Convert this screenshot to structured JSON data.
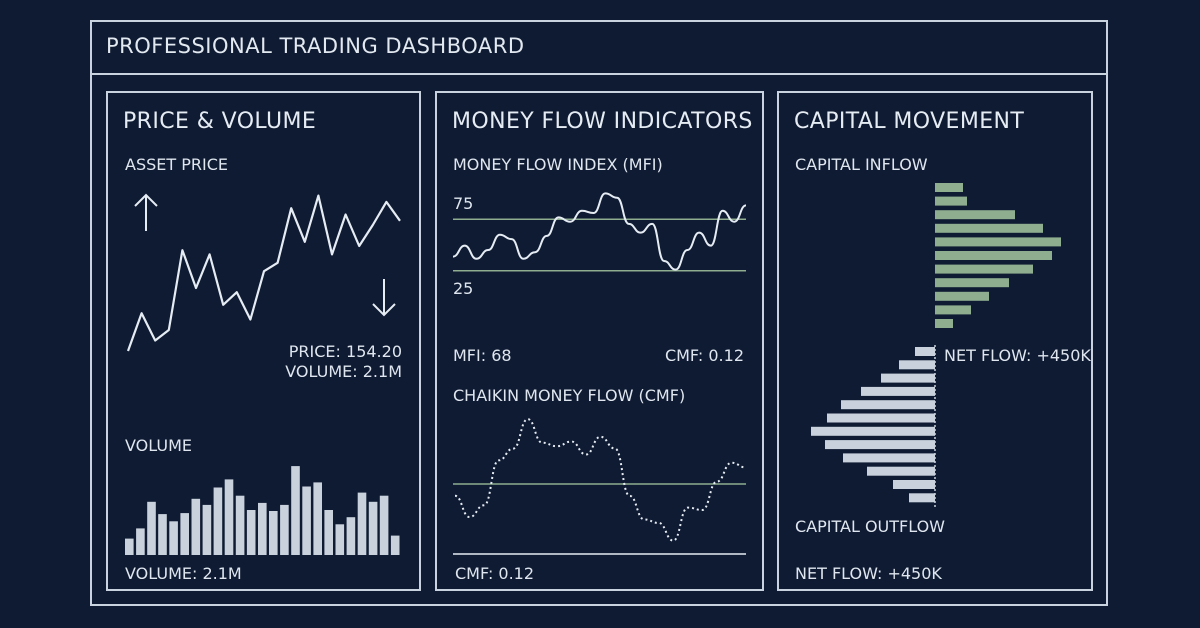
{
  "header": {
    "title": "PROFESSIONAL TRADING DASHBOARD"
  },
  "colors": {
    "background": "#0f1b33",
    "line": "#e6ecf3",
    "inflow": "#8fae8f",
    "outflow": "#c9d2dc",
    "threshold": "#8fae8f"
  },
  "price_panel": {
    "title": "PRICE & VOLUME",
    "asset_label": "ASSET PRICE",
    "price_text": "PRICE: 154.20",
    "volume_text": "VOLUME: 2.1M",
    "volume_label": "VOLUME",
    "volume_footer": "VOLUME: 2.1M",
    "up_icon": "arrow-up-icon",
    "down_icon": "arrow-down-icon"
  },
  "money_flow_panel": {
    "title": "MONEY FLOW INDICATORS",
    "mfi_label": "MONEY FLOW INDEX (MFI)",
    "mfi_upper": "75",
    "mfi_lower": "25",
    "mfi_value_text": "MFI: 68",
    "cmf_value_text": "CMF: 0.12",
    "cmf_label": "CHAIKIN MONEY FLOW (CMF)",
    "cmf_footer": "CMF: 0.12"
  },
  "capital_panel": {
    "title": "CAPITAL MOVEMENT",
    "inflow_label": "CAPITAL INFLOW",
    "net_flow_mid": "NET FLOW: +450K",
    "outflow_label": "CAPITAL OUTFLOW",
    "net_flow_footer": "NET FLOW: +450K"
  },
  "chart_data": [
    {
      "type": "line",
      "name": "asset-price",
      "title": "ASSET PRICE",
      "values": [
        20,
        38,
        25,
        30,
        68,
        50,
        66,
        42,
        48,
        35,
        58,
        62,
        88,
        72,
        94,
        66,
        85,
        70,
        80,
        91,
        82
      ],
      "ylim": [
        0,
        100
      ]
    },
    {
      "type": "bar",
      "name": "volume",
      "title": "VOLUME",
      "values": [
        16,
        26,
        52,
        40,
        33,
        41,
        55,
        49,
        66,
        74,
        58,
        44,
        51,
        43,
        49,
        87,
        67,
        71,
        44,
        30,
        37,
        61,
        52,
        58,
        19
      ],
      "ylim": [
        0,
        90
      ]
    },
    {
      "type": "line",
      "name": "mfi",
      "title": "MONEY FLOW INDEX (MFI)",
      "values": [
        38,
        48,
        36,
        44,
        58,
        54,
        36,
        42,
        57,
        74,
        70,
        80,
        78,
        96,
        92,
        68,
        60,
        68,
        34,
        26,
        44,
        60,
        48,
        80,
        70,
        85
      ],
      "ylim": [
        0,
        100
      ],
      "reference_lines": [
        75,
        25
      ]
    },
    {
      "type": "line",
      "name": "cmf",
      "title": "CHAIKIN MONEY FLOW (CMF)",
      "values": [
        -0.1,
        -0.28,
        -0.18,
        0.2,
        0.3,
        0.55,
        0.35,
        0.32,
        0.36,
        0.25,
        0.4,
        0.3,
        -0.1,
        -0.3,
        -0.33,
        -0.48,
        -0.2,
        -0.22,
        0.02,
        0.18,
        0.14
      ],
      "ylim": [
        -0.6,
        0.7
      ],
      "reference_lines": [
        0
      ]
    },
    {
      "type": "bar",
      "name": "capital-inflow",
      "title": "CAPITAL INFLOW",
      "orientation": "horizontal",
      "values": [
        28,
        32,
        80,
        108,
        126,
        117,
        98,
        74,
        54,
        36,
        18
      ]
    },
    {
      "type": "bar",
      "name": "capital-outflow",
      "title": "CAPITAL OUTFLOW",
      "orientation": "horizontal",
      "values": [
        20,
        36,
        54,
        74,
        94,
        108,
        124,
        110,
        92,
        68,
        42,
        26
      ]
    }
  ]
}
